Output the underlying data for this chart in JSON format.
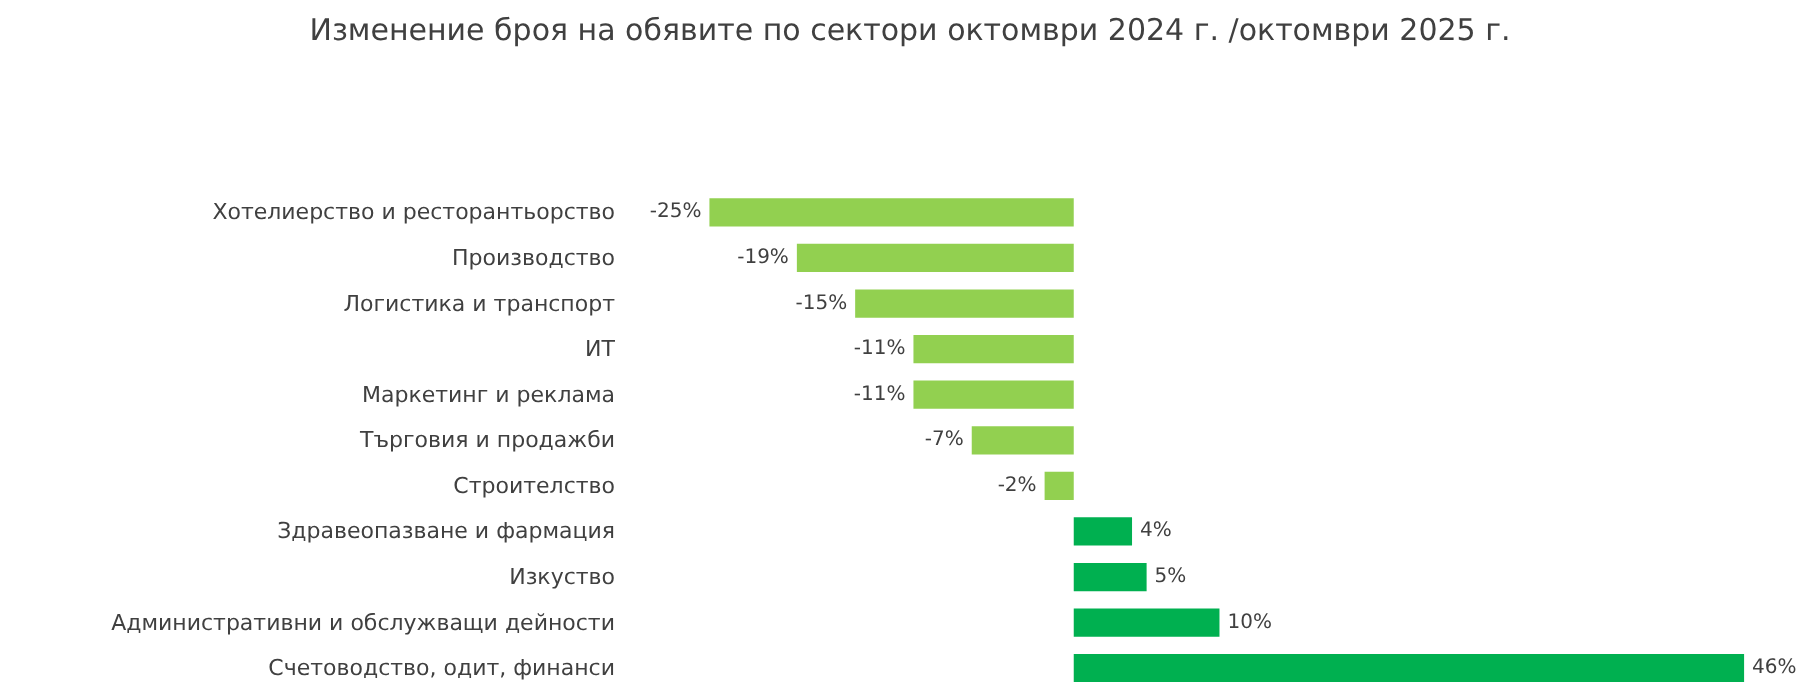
{
  "chart_data": {
    "type": "bar",
    "orientation": "horizontal",
    "title": "Изменение броя на обявите по сектори октомври 2024 г. /октомври  2025 г.",
    "categories": [
      "Хотелиерство и ресторантьорство",
      "Производство",
      "Логистика и транспорт",
      "ИТ",
      "Маркетинг и реклама",
      "Търговия и продажби",
      "Строителство",
      "Здравеопазване и фармация",
      "Изкуство",
      "Административни и обслужващи дейности",
      "Счетоводство, одит, финанси"
    ],
    "values": [
      -25,
      -19,
      -15,
      -11,
      -11,
      -7,
      -2,
      4,
      5,
      10,
      46
    ],
    "colors": [
      "#92d050",
      "#92d050",
      "#92d050",
      "#92d050",
      "#92d050",
      "#92d050",
      "#92d050",
      "#00b050",
      "#00b050",
      "#00b050",
      "#00b050"
    ],
    "value_labels": [
      "-25%",
      "-19%",
      "-15%",
      "-11%",
      "-11%",
      "-7%",
      "-2%",
      "4%",
      "5%",
      "10%",
      "46%"
    ],
    "grid": false
  }
}
